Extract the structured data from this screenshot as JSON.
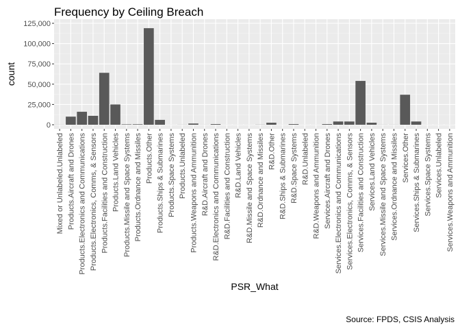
{
  "chart_data": {
    "type": "bar",
    "title": "Frequency by Ceiling Breach",
    "xlabel": "PSR_What",
    "ylabel": "count",
    "caption": "Source: FPDS, CSIS Analysis",
    "ylim": [
      0,
      130000
    ],
    "yticks": [
      0,
      25000,
      50000,
      75000,
      100000,
      125000
    ],
    "ytick_labels": [
      "0",
      "25,000",
      "50,000",
      "75,000",
      "100,000",
      "125,000"
    ],
    "grid": true,
    "legend": "none",
    "colors": {
      "bar": "#595959",
      "panel": "#ebebeb",
      "grid_major": "#ffffff",
      "grid_minor": "#f5f5f5"
    },
    "categories": [
      "Mixed or Unlabeled.Unlabeled",
      "Products.Aircraft and Drones",
      "Products.Electronics and Communications",
      "Products.Electronics, Comms, & Sensors",
      "Products.Facilities and Construction",
      "Products.Land Vehicles",
      "Products.Missile and Space Systems",
      "Products.Ordnance and Missiles",
      "Products.Other",
      "Products.Ships & Submarines",
      "Products.Space Systems",
      "Products.Unlabeled",
      "Products.Weapons and Ammunition",
      "R&D.Aircraft and Drones",
      "R&D.Electronics and Communications",
      "R&D.Facilities and Construction",
      "R&D.Land Vehicles",
      "R&D.Missile and Space Systems",
      "R&D.Ordnance and Missiles",
      "R&D.Other",
      "R&D.Ships & Submarines",
      "R&D.Space Systems",
      "R&D.Unlabeled",
      "R&D.Weapons and Ammunition",
      "Services.Aircraft and Drones",
      "Services.Electronics and Communications",
      "Services.Electronics, Comms, & Sensors",
      "Services.Facilities and Construction",
      "Services.Land Vehicles",
      "Services.Missile and Space Systems",
      "Services.Ordnance and Missiles",
      "Services.Other",
      "Services.Ships & Submarines",
      "Services.Space Systems",
      "Services.Unlabeled",
      "Services.Weapons and Ammunition"
    ],
    "values": [
      100,
      10000,
      16000,
      11000,
      64000,
      25000,
      500,
      600,
      119000,
      6000,
      50,
      100,
      1500,
      80,
      800,
      50,
      50,
      50,
      150,
      2500,
      50,
      800,
      50,
      50,
      800,
      4000,
      4000,
      54000,
      2500,
      100,
      100,
      37000,
      4000,
      50,
      50,
      50
    ]
  }
}
